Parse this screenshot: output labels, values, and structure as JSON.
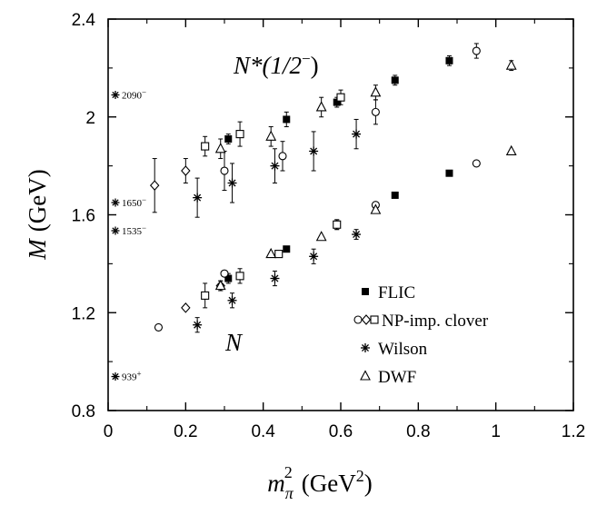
{
  "chart_data": {
    "type": "scatter",
    "xlabel": "m",
    "xlabel_sub": "π",
    "xlabel_sup": "2",
    "xlabel_unit": "(GeV",
    "xlabel_unit_sup": "2",
    "xlabel_unit_close": ")",
    "ylabel_italic": "M",
    "ylabel_unit": "(GeV)",
    "xlim": [
      0,
      1.2
    ],
    "ylim": [
      0.8,
      2.4
    ],
    "xticks": [
      "0",
      "0.2",
      "0.4",
      "0.6",
      "0.8",
      "1",
      "1.2"
    ],
    "yticks": [
      "0.8",
      "1.2",
      "1.6",
      "2",
      "2.4"
    ],
    "grid": false,
    "legend_position": "lower-right",
    "legend": [
      {
        "label": "FLIC",
        "marker": "square-filled"
      },
      {
        "label": "NP-imp. clover",
        "marker": "circle-diamond-square-open"
      },
      {
        "label": "Wilson",
        "marker": "star"
      },
      {
        "label": "DWF",
        "marker": "triangle-open"
      }
    ],
    "annotations": {
      "nstar_label": "N*(1/2",
      "nstar_sup": "−",
      "nstar_close": ")",
      "n_label": "N"
    },
    "experimental": [
      {
        "y": 2.09,
        "label": "2090",
        "sign": "−"
      },
      {
        "y": 1.65,
        "label": "1650",
        "sign": "−"
      },
      {
        "y": 1.535,
        "label": "1535",
        "sign": "−"
      },
      {
        "y": 0.939,
        "label": "939",
        "sign": "+"
      }
    ],
    "series": [
      {
        "name": "FLIC",
        "marker": "square-filled",
        "points": [
          {
            "x": 0.31,
            "y": 1.91,
            "err": 0.02
          },
          {
            "x": 0.46,
            "y": 1.99,
            "err": 0.03
          },
          {
            "x": 0.59,
            "y": 2.06,
            "err": 0.02
          },
          {
            "x": 0.74,
            "y": 2.15,
            "err": 0.02
          },
          {
            "x": 0.88,
            "y": 2.23,
            "err": 0.02
          },
          {
            "x": 0.31,
            "y": 1.34,
            "err": 0.02
          },
          {
            "x": 0.46,
            "y": 1.46,
            "err": 0.01
          },
          {
            "x": 0.59,
            "y": 1.56,
            "err": 0.02
          },
          {
            "x": 0.74,
            "y": 1.68,
            "err": 0.0
          },
          {
            "x": 0.88,
            "y": 1.77,
            "err": 0.0
          }
        ]
      },
      {
        "name": "NP-imp. clover (circles)",
        "marker": "circle-open",
        "points": [
          {
            "x": 0.3,
            "y": 1.78,
            "err": 0.08
          },
          {
            "x": 0.45,
            "y": 1.84,
            "err": 0.06
          },
          {
            "x": 0.69,
            "y": 2.02,
            "err": 0.05
          },
          {
            "x": 0.95,
            "y": 2.27,
            "err": 0.03
          },
          {
            "x": 0.13,
            "y": 1.14,
            "err": 0.0
          },
          {
            "x": 0.3,
            "y": 1.36,
            "err": 0.0
          },
          {
            "x": 0.69,
            "y": 1.64,
            "err": 0.0
          },
          {
            "x": 0.95,
            "y": 1.81,
            "err": 0.0
          }
        ]
      },
      {
        "name": "NP-imp. clover (diamonds)",
        "marker": "diamond-open",
        "points": [
          {
            "x": 0.12,
            "y": 1.72,
            "err": 0.11
          },
          {
            "x": 0.2,
            "y": 1.78,
            "err": 0.05
          },
          {
            "x": 0.2,
            "y": 1.22,
            "err": 0.0
          },
          {
            "x": 0.29,
            "y": 1.31,
            "err": 0.02
          }
        ]
      },
      {
        "name": "NP-imp. clover (squares)",
        "marker": "square-open",
        "points": [
          {
            "x": 0.25,
            "y": 1.88,
            "err": 0.04
          },
          {
            "x": 0.34,
            "y": 1.93,
            "err": 0.05
          },
          {
            "x": 0.6,
            "y": 2.08,
            "err": 0.03
          },
          {
            "x": 0.25,
            "y": 1.27,
            "err": 0.05
          },
          {
            "x": 0.34,
            "y": 1.35,
            "err": 0.03
          },
          {
            "x": 0.44,
            "y": 1.44,
            "err": 0.0
          },
          {
            "x": 0.59,
            "y": 1.56,
            "err": 0.02
          }
        ]
      },
      {
        "name": "Wilson",
        "marker": "star",
        "points": [
          {
            "x": 0.23,
            "y": 1.67,
            "err": 0.08
          },
          {
            "x": 0.32,
            "y": 1.73,
            "err": 0.08
          },
          {
            "x": 0.43,
            "y": 1.8,
            "err": 0.07
          },
          {
            "x": 0.53,
            "y": 1.86,
            "err": 0.08
          },
          {
            "x": 0.64,
            "y": 1.93,
            "err": 0.06
          },
          {
            "x": 0.23,
            "y": 1.15,
            "err": 0.03
          },
          {
            "x": 0.32,
            "y": 1.25,
            "err": 0.03
          },
          {
            "x": 0.43,
            "y": 1.34,
            "err": 0.03
          },
          {
            "x": 0.53,
            "y": 1.43,
            "err": 0.03
          },
          {
            "x": 0.64,
            "y": 1.52,
            "err": 0.02
          }
        ]
      },
      {
        "name": "DWF",
        "marker": "triangle-open",
        "points": [
          {
            "x": 0.29,
            "y": 1.87,
            "err": 0.04
          },
          {
            "x": 0.42,
            "y": 1.92,
            "err": 0.04
          },
          {
            "x": 0.55,
            "y": 2.04,
            "err": 0.04
          },
          {
            "x": 0.69,
            "y": 2.1,
            "err": 0.03
          },
          {
            "x": 1.04,
            "y": 2.21,
            "err": 0.02
          },
          {
            "x": 0.29,
            "y": 1.31,
            "err": 0.02
          },
          {
            "x": 0.42,
            "y": 1.44,
            "err": 0.0
          },
          {
            "x": 0.55,
            "y": 1.51,
            "err": 0.0
          },
          {
            "x": 0.69,
            "y": 1.62,
            "err": 0.0
          },
          {
            "x": 1.04,
            "y": 1.86,
            "err": 0.0
          }
        ]
      }
    ]
  }
}
